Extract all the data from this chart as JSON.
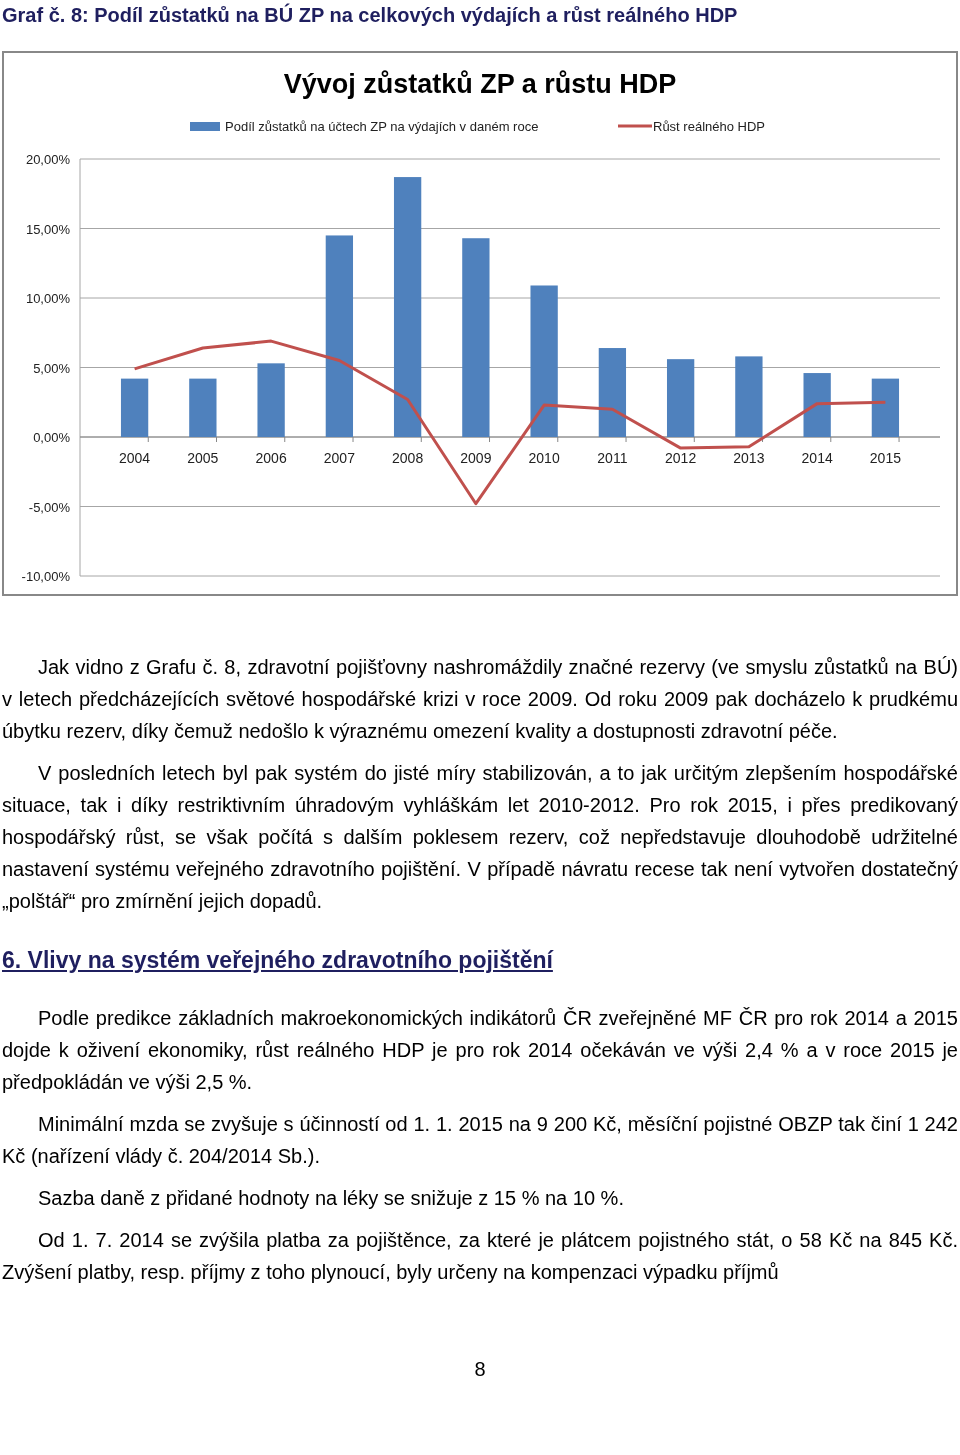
{
  "chart_data": {
    "type": "bar",
    "title": "Vývoj zůstatků ZP a růstu HDP",
    "categories": [
      "2004",
      "2005",
      "2006",
      "2007",
      "2008",
      "2009",
      "2010",
      "2011",
      "2012",
      "2013",
      "2014",
      "2015"
    ],
    "series": [
      {
        "name": "Podíl zůstatků na účtech ZP na výdajích v daném roce",
        "color": "#4f81bd",
        "values": [
          4.2,
          4.2,
          5.3,
          14.5,
          18.7,
          14.3,
          10.9,
          6.4,
          5.6,
          5.8,
          4.6,
          4.2
        ]
      },
      {
        "name": "Růst reálného HDP",
        "color": "#c0504d",
        "type": "line",
        "values": [
          4.9,
          6.4,
          6.9,
          5.5,
          2.7,
          -4.8,
          2.3,
          2.0,
          -0.8,
          -0.7,
          2.4,
          2.5
        ]
      }
    ],
    "ylim": [
      -10,
      20
    ],
    "yticks": [
      {
        "value": -10,
        "label": "-10,00%"
      },
      {
        "value": -5,
        "label": "-5,00%"
      },
      {
        "value": 0,
        "label": "0,00%"
      },
      {
        "value": 5,
        "label": "5,00%"
      },
      {
        "value": 10,
        "label": "10,00%"
      },
      {
        "value": 15,
        "label": "15,00%"
      },
      {
        "value": 20,
        "label": "20,00%"
      }
    ],
    "grid": "y",
    "legend": "top",
    "marker": "none",
    "annotations": [
      "Graf č. 8: Podíl zůstatků na BÚ ZP na celkových výdajích a růst reálného HDP",
      "Jak vidno z Grafu č. 8, zdravotní pojišťovny nashromáždily značné rezervy (ve smyslu zůstatků na BÚ) v letech předcházejících světové hospodářské krizi v roce 2009. Od roku 2009 pak docházelo k prudkému úbytku rezerv, díky čemuž nedošlo k výraznému omezení kvality a dostupnosti zdravotní péče.",
      "V posledních letech byl pak systém do jisté míry stabilizován, a to jak určitým zlepšením hospodářské situace, tak i díky restriktivním úhradovým vyhláškám let 2010-2012. Pro rok 2015, i přes predikovaný hospodářský růst, se však počítá s dalším poklesem rezerv, což nepředstavuje dlouhodobě udržitelné nastavení systému veřejného zdravotního pojištění. V případě návratu recese tak není vytvořen dostatečný „polštář“ pro zmírnění jejich dopadů.",
      "6. Vlivy na systém veřejného zdravotního pojištění",
      "Podle predikce základních makroekonomických indikátorů ČR zveřejněné MF ČR pro rok 2014 a 2015 dojde k oživení ekonomiky, růst reálného HDP je pro rok 2014 očekáván ve výši 2,4 % a v roce 2015 je předpokládán ve výši 2,5 %.",
      "Minimální mzda se zvyšuje s účinností od 1. 1. 2015 na 9 200 Kč, měsíční pojistné OBZP tak činí 1 242 Kč (nařízení vlády č. 204/2014 Sb.).",
      "Sazba daně z přidané hodnoty na léky se snižuje z 15 % na 10 %.",
      "Od 1. 7. 2014 se zvýšila platba za pojištěnce, za které je plátcem pojistného stát, o 58 Kč na 845 Kč. Zvýšení platby, resp. příjmy z toho plynoucí, byly určeny na kompenzaci výpadku příjmů",
      "8"
    ]
  }
}
